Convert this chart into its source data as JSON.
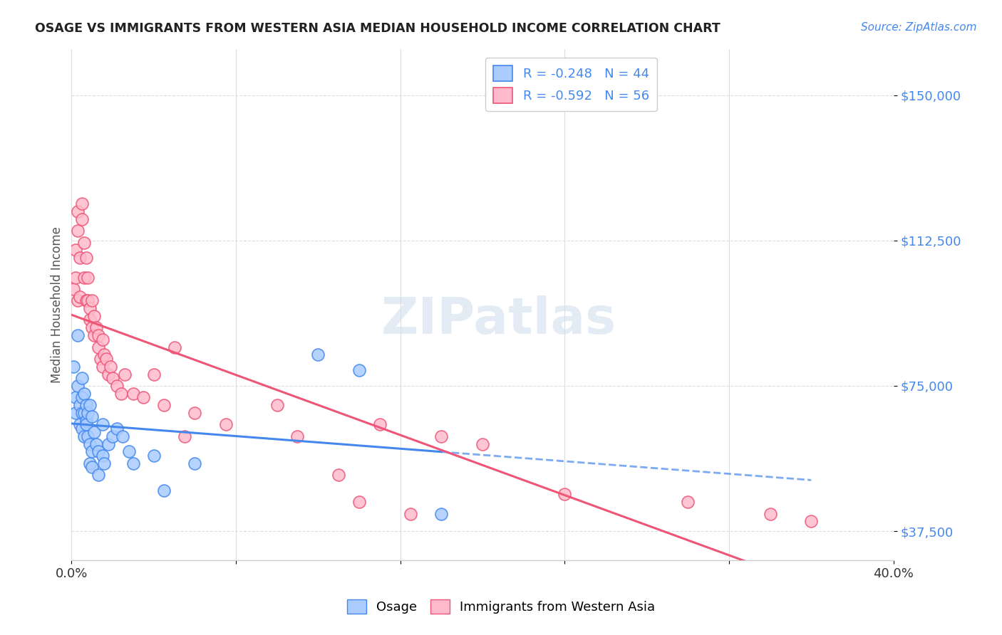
{
  "title": "OSAGE VS IMMIGRANTS FROM WESTERN ASIA MEDIAN HOUSEHOLD INCOME CORRELATION CHART",
  "source": "Source: ZipAtlas.com",
  "ylabel": "Median Household Income",
  "yticks": [
    37500,
    75000,
    112500,
    150000
  ],
  "ytick_labels": [
    "$37,500",
    "$75,000",
    "$112,500",
    "$150,000"
  ],
  "xlim": [
    0.0,
    0.4
  ],
  "ylim": [
    30000,
    162000
  ],
  "osage_color": "#aaccff",
  "immigrants_color": "#ffbbcc",
  "osage_R": -0.248,
  "osage_N": 44,
  "immigrants_R": -0.592,
  "immigrants_N": 56,
  "line_color_osage": "#4488ee",
  "line_color_immigrants": "#ee5577",
  "watermark": "ZIPatlas",
  "background_color": "#ffffff",
  "grid_color": "#dddddd",
  "osage_scatter": [
    [
      0.001,
      80000
    ],
    [
      0.002,
      72000
    ],
    [
      0.002,
      68000
    ],
    [
      0.003,
      88000
    ],
    [
      0.003,
      75000
    ],
    [
      0.004,
      70000
    ],
    [
      0.004,
      65000
    ],
    [
      0.005,
      72000
    ],
    [
      0.005,
      68000
    ],
    [
      0.005,
      77000
    ],
    [
      0.005,
      64000
    ],
    [
      0.006,
      73000
    ],
    [
      0.006,
      68000
    ],
    [
      0.006,
      62000
    ],
    [
      0.007,
      70000
    ],
    [
      0.007,
      66000
    ],
    [
      0.007,
      65000
    ],
    [
      0.008,
      68000
    ],
    [
      0.008,
      62000
    ],
    [
      0.009,
      70000
    ],
    [
      0.009,
      60000
    ],
    [
      0.009,
      55000
    ],
    [
      0.01,
      67000
    ],
    [
      0.01,
      58000
    ],
    [
      0.01,
      54000
    ],
    [
      0.011,
      63000
    ],
    [
      0.012,
      60000
    ],
    [
      0.013,
      58000
    ],
    [
      0.013,
      52000
    ],
    [
      0.015,
      65000
    ],
    [
      0.015,
      57000
    ],
    [
      0.016,
      55000
    ],
    [
      0.018,
      60000
    ],
    [
      0.02,
      62000
    ],
    [
      0.022,
      64000
    ],
    [
      0.025,
      62000
    ],
    [
      0.028,
      58000
    ],
    [
      0.03,
      55000
    ],
    [
      0.04,
      57000
    ],
    [
      0.045,
      48000
    ],
    [
      0.06,
      55000
    ],
    [
      0.12,
      83000
    ],
    [
      0.14,
      79000
    ],
    [
      0.18,
      42000
    ]
  ],
  "immigrants_scatter": [
    [
      0.001,
      100000
    ],
    [
      0.002,
      110000
    ],
    [
      0.002,
      103000
    ],
    [
      0.003,
      120000
    ],
    [
      0.003,
      115000
    ],
    [
      0.003,
      97000
    ],
    [
      0.004,
      108000
    ],
    [
      0.004,
      98000
    ],
    [
      0.005,
      122000
    ],
    [
      0.005,
      118000
    ],
    [
      0.006,
      112000
    ],
    [
      0.006,
      103000
    ],
    [
      0.007,
      108000
    ],
    [
      0.007,
      97000
    ],
    [
      0.008,
      103000
    ],
    [
      0.008,
      97000
    ],
    [
      0.009,
      95000
    ],
    [
      0.009,
      92000
    ],
    [
      0.01,
      97000
    ],
    [
      0.01,
      90000
    ],
    [
      0.011,
      88000
    ],
    [
      0.011,
      93000
    ],
    [
      0.012,
      90000
    ],
    [
      0.013,
      88000
    ],
    [
      0.013,
      85000
    ],
    [
      0.014,
      82000
    ],
    [
      0.015,
      80000
    ],
    [
      0.015,
      87000
    ],
    [
      0.016,
      83000
    ],
    [
      0.017,
      82000
    ],
    [
      0.018,
      78000
    ],
    [
      0.019,
      80000
    ],
    [
      0.02,
      77000
    ],
    [
      0.022,
      75000
    ],
    [
      0.024,
      73000
    ],
    [
      0.026,
      78000
    ],
    [
      0.03,
      73000
    ],
    [
      0.035,
      72000
    ],
    [
      0.04,
      78000
    ],
    [
      0.045,
      70000
    ],
    [
      0.05,
      85000
    ],
    [
      0.055,
      62000
    ],
    [
      0.06,
      68000
    ],
    [
      0.075,
      65000
    ],
    [
      0.1,
      70000
    ],
    [
      0.11,
      62000
    ],
    [
      0.13,
      52000
    ],
    [
      0.14,
      45000
    ],
    [
      0.15,
      65000
    ],
    [
      0.165,
      42000
    ],
    [
      0.18,
      62000
    ],
    [
      0.2,
      60000
    ],
    [
      0.24,
      47000
    ],
    [
      0.3,
      45000
    ],
    [
      0.34,
      42000
    ],
    [
      0.36,
      40000
    ]
  ]
}
